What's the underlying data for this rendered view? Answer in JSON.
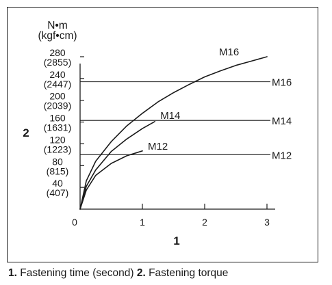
{
  "chart_data": {
    "type": "line",
    "unit_top": "N•m",
    "unit_bottom": "(kgf•cm)",
    "x_axis_marker": "1",
    "y_axis_marker": "2",
    "xlim": [
      0,
      3
    ],
    "ylim": [
      0,
      280
    ],
    "x_ticks": [
      {
        "value": 0,
        "label": "0"
      },
      {
        "value": 1,
        "label": "1"
      },
      {
        "value": 2,
        "label": "2"
      },
      {
        "value": 3,
        "label": "3"
      }
    ],
    "y_ticks": [
      {
        "value": 40,
        "label": "40",
        "sublabel": "(407)"
      },
      {
        "value": 80,
        "label": "80",
        "sublabel": "(815)"
      },
      {
        "value": 120,
        "label": "120",
        "sublabel": "(1223)"
      },
      {
        "value": 160,
        "label": "160",
        "sublabel": "(1631)"
      },
      {
        "value": 200,
        "label": "200",
        "sublabel": "(2039)"
      },
      {
        "value": 240,
        "label": "240",
        "sublabel": "(2447)"
      },
      {
        "value": 280,
        "label": "280",
        "sublabel": "(2855)"
      }
    ],
    "reference_lines": [
      {
        "name": "M16",
        "y": 234
      },
      {
        "name": "M14",
        "y": 163
      },
      {
        "name": "M12",
        "y": 100
      }
    ],
    "series": [
      {
        "name": "M16",
        "x": [
          0,
          0.1,
          0.25,
          0.5,
          0.75,
          1,
          1.25,
          1.5,
          1.75,
          2,
          2.25,
          2.5,
          2.75,
          3
        ],
        "y": [
          0,
          52,
          88,
          124,
          153,
          176,
          197,
          214,
          229,
          243,
          254,
          264,
          272,
          280
        ]
      },
      {
        "name": "M14",
        "x": [
          0,
          0.1,
          0.25,
          0.5,
          0.75,
          1,
          1.2
        ],
        "y": [
          0,
          42,
          72,
          106,
          129,
          148,
          161
        ]
      },
      {
        "name": "M12",
        "x": [
          0,
          0.1,
          0.25,
          0.5,
          0.75,
          1
        ],
        "y": [
          0,
          35,
          62,
          84,
          98,
          107
        ]
      }
    ]
  },
  "caption": {
    "num1": "1.",
    "text1": "Fastening time (second)",
    "num2": "2.",
    "text2": "Fastening torque"
  }
}
